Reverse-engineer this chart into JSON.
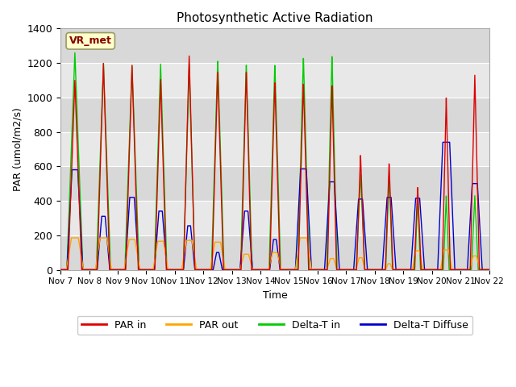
{
  "title": "Photosynthetic Active Radiation",
  "ylabel": "PAR (umol/m2/s)",
  "xlabel": "Time",
  "xlim": [
    0,
    15
  ],
  "ylim": [
    0,
    1400
  ],
  "background_color": "#ffffff",
  "plot_bg_color": "#e8e8e8",
  "series_colors": {
    "par_in": "#dd0000",
    "par_out": "#ffa500",
    "delta_t_in": "#00cc00",
    "delta_t_diffuse": "#0000cc"
  },
  "legend_labels": [
    "PAR in",
    "PAR out",
    "Delta-T in",
    "Delta-T Diffuse"
  ],
  "annotation_text": "VR_met",
  "annotation_color": "#880000",
  "annotation_bg": "#ffffcc",
  "xtick_labels": [
    "Nov 7",
    "Nov 8",
    "Nov 9",
    "Nov 10",
    "Nov 11",
    "Nov 12",
    "Nov 13",
    "Nov 14",
    "Nov 15",
    "Nov 16",
    "Nov 17",
    "Nov 18",
    "Nov 19",
    "Nov 20",
    "Nov 21",
    "Nov 22"
  ],
  "ytick_values": [
    0,
    200,
    400,
    600,
    800,
    1000,
    1200,
    1400
  ]
}
